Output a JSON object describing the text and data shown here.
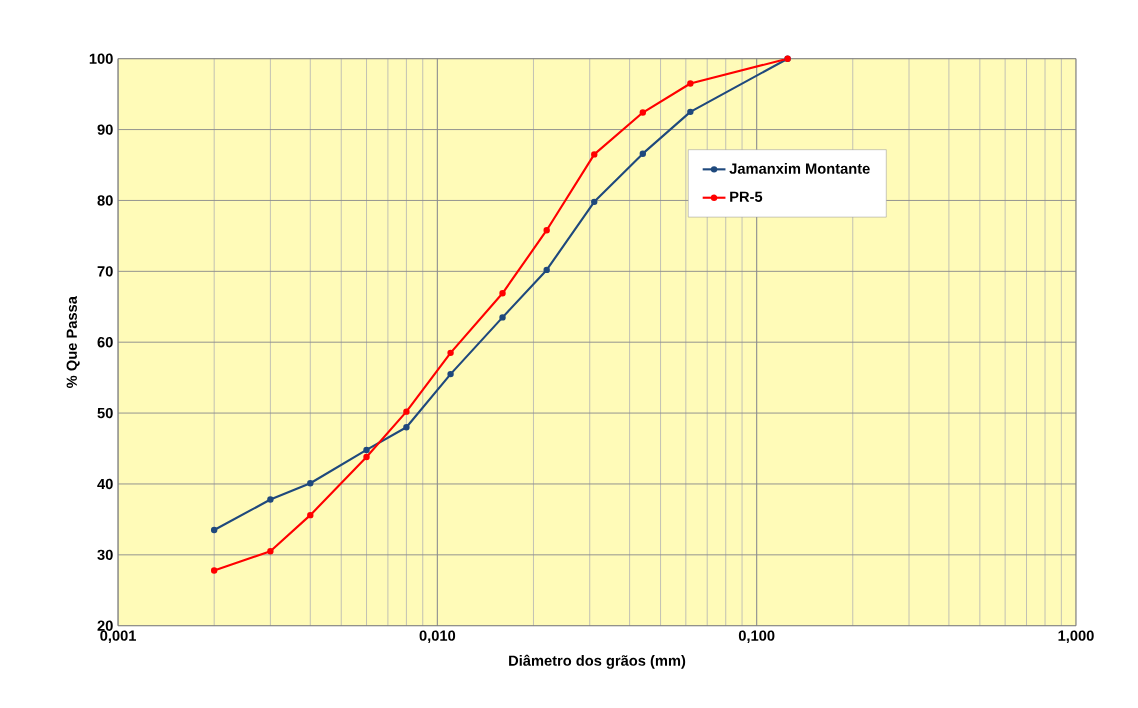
{
  "chart_data": {
    "type": "line",
    "xlabel": "Diâmetro dos grãos (mm)",
    "ylabel": "% Que Passa",
    "x": [
      0.002,
      0.003,
      0.004,
      0.006,
      0.008,
      0.011,
      0.016,
      0.022,
      0.031,
      0.044,
      0.062,
      0.125
    ],
    "series": [
      {
        "name": "Jamanxim Montante",
        "color": "#1f497d",
        "values": [
          33.5,
          37.8,
          40.1,
          44.8,
          48.0,
          55.5,
          63.5,
          70.2,
          79.8,
          86.6,
          92.5,
          100
        ]
      },
      {
        "name": "PR-5",
        "color": "#ff0000",
        "values": [
          27.8,
          30.5,
          35.6,
          43.8,
          50.2,
          58.5,
          66.9,
          75.8,
          86.5,
          92.4,
          96.5,
          100
        ]
      }
    ],
    "log": "x",
    "xlim": [
      0.001,
      1
    ],
    "ylim": [
      20,
      100
    ],
    "xticks": [
      {
        "value": 0.001,
        "label": "0,001"
      },
      {
        "value": 0.01,
        "label": "0,010"
      },
      {
        "value": 0.1,
        "label": "0,100"
      },
      {
        "value": 1,
        "label": "1,000"
      }
    ],
    "yticks": [
      20,
      30,
      40,
      50,
      60,
      70,
      80,
      90,
      100
    ],
    "grid": true,
    "legend": "top right",
    "marker": "circle",
    "line_style": "solid"
  }
}
